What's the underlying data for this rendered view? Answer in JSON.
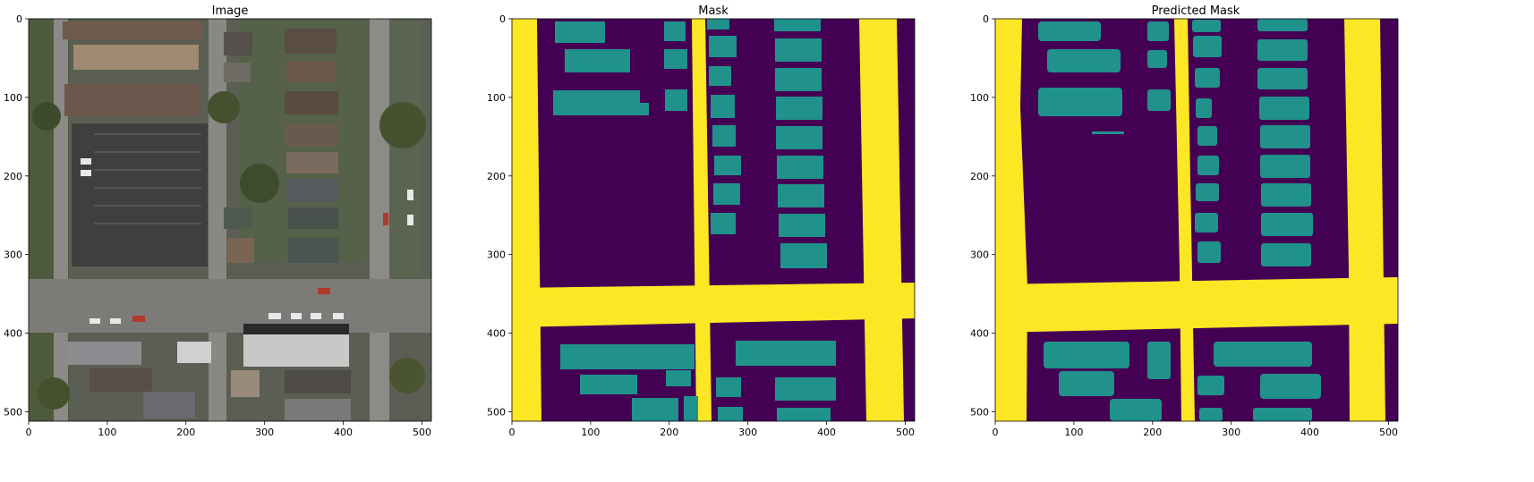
{
  "panels": [
    {
      "id": "image",
      "title": "Image"
    },
    {
      "id": "mask",
      "title": "Mask"
    },
    {
      "id": "pred",
      "title": "Predicted Mask"
    }
  ],
  "axes": {
    "x_ticks": [
      "0",
      "100",
      "200",
      "300",
      "400",
      "500"
    ],
    "y_ticks": [
      "0",
      "100",
      "200",
      "300",
      "400",
      "500"
    ],
    "range": [
      0,
      512
    ]
  },
  "colors": {
    "background": "#440154",
    "building": "#21918c",
    "road": "#fde725"
  }
}
